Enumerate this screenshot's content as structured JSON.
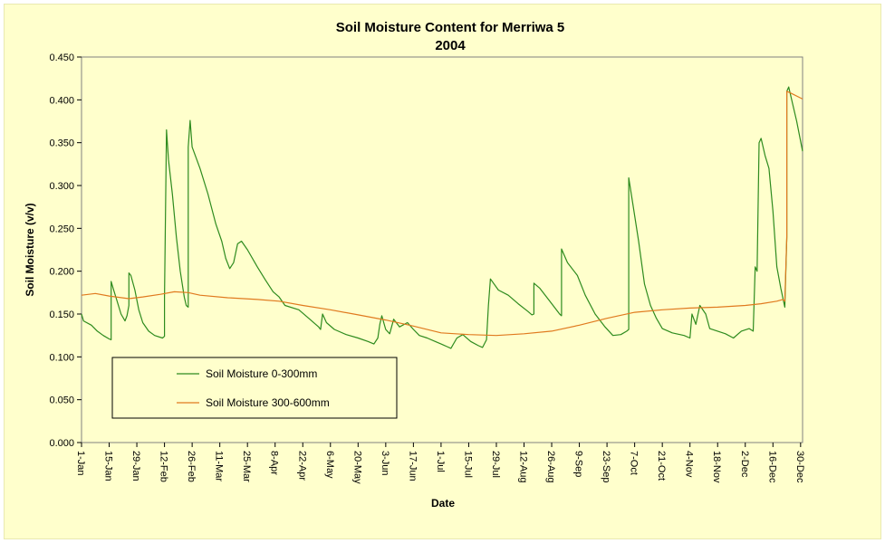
{
  "chart_data": {
    "type": "line",
    "title": "Soil Moisture Content for Merriwa 5",
    "subtitle": "2004",
    "xlabel": "Date",
    "ylabel": "Soil Moisture (v/v)",
    "ylim": [
      0,
      0.45
    ],
    "yticks": [
      "0.000",
      "0.050",
      "0.100",
      "0.150",
      "0.200",
      "0.250",
      "0.300",
      "0.350",
      "0.400",
      "0.450"
    ],
    "xlim": [
      "2004-01-01",
      "2004-12-31"
    ],
    "xticks": [
      {
        "date": "2004-01-01",
        "label": "1-Jan"
      },
      {
        "date": "2004-01-15",
        "label": "15-Jan"
      },
      {
        "date": "2004-01-29",
        "label": "29-Jan"
      },
      {
        "date": "2004-02-12",
        "label": "12-Feb"
      },
      {
        "date": "2004-02-26",
        "label": "26-Feb"
      },
      {
        "date": "2004-03-11",
        "label": "11-Mar"
      },
      {
        "date": "2004-03-25",
        "label": "25-Mar"
      },
      {
        "date": "2004-04-08",
        "label": "8-Apr"
      },
      {
        "date": "2004-04-22",
        "label": "22-Apr"
      },
      {
        "date": "2004-05-06",
        "label": "6-May"
      },
      {
        "date": "2004-05-20",
        "label": "20-May"
      },
      {
        "date": "2004-06-03",
        "label": "3-Jun"
      },
      {
        "date": "2004-06-17",
        "label": "17-Jun"
      },
      {
        "date": "2004-07-01",
        "label": "1-Jul"
      },
      {
        "date": "2004-07-15",
        "label": "15-Jul"
      },
      {
        "date": "2004-07-29",
        "label": "29-Jul"
      },
      {
        "date": "2004-08-12",
        "label": "12-Aug"
      },
      {
        "date": "2004-08-26",
        "label": "26-Aug"
      },
      {
        "date": "2004-09-09",
        "label": "9-Sep"
      },
      {
        "date": "2004-09-23",
        "label": "23-Sep"
      },
      {
        "date": "2004-10-07",
        "label": "7-Oct"
      },
      {
        "date": "2004-10-21",
        "label": "21-Oct"
      },
      {
        "date": "2004-11-04",
        "label": "4-Nov"
      },
      {
        "date": "2004-11-18",
        "label": "18-Nov"
      },
      {
        "date": "2004-12-02",
        "label": "2-Dec"
      },
      {
        "date": "2004-12-16",
        "label": "16-Dec"
      },
      {
        "date": "2004-12-30",
        "label": "30-Dec"
      }
    ],
    "grid": false,
    "legend_position": "lower-left",
    "series": [
      {
        "name": "Soil Moisture 0-300mm",
        "color": "#2E8B1E",
        "points": [
          [
            "2004-01-01",
            0.15
          ],
          [
            "2004-01-02",
            0.142
          ],
          [
            "2004-01-06",
            0.137
          ],
          [
            "2004-01-09",
            0.13
          ],
          [
            "2004-01-12",
            0.125
          ],
          [
            "2004-01-15",
            0.121
          ],
          [
            "2004-01-16",
            0.12
          ],
          [
            "2004-01-16",
            0.188
          ],
          [
            "2004-01-17",
            0.18
          ],
          [
            "2004-01-19",
            0.165
          ],
          [
            "2004-01-21",
            0.15
          ],
          [
            "2004-01-23",
            0.142
          ],
          [
            "2004-01-24",
            0.148
          ],
          [
            "2004-01-25",
            0.16
          ],
          [
            "2004-01-25",
            0.198
          ],
          [
            "2004-01-26",
            0.195
          ],
          [
            "2004-01-28",
            0.178
          ],
          [
            "2004-01-30",
            0.155
          ],
          [
            "2004-02-01",
            0.14
          ],
          [
            "2004-02-04",
            0.13
          ],
          [
            "2004-02-07",
            0.125
          ],
          [
            "2004-02-11",
            0.122
          ],
          [
            "2004-02-12",
            0.124
          ],
          [
            "2004-02-12",
            0.17
          ],
          [
            "2004-02-13",
            0.365
          ],
          [
            "2004-02-14",
            0.33
          ],
          [
            "2004-02-16",
            0.29
          ],
          [
            "2004-02-18",
            0.24
          ],
          [
            "2004-02-20",
            0.2
          ],
          [
            "2004-02-22",
            0.17
          ],
          [
            "2004-02-23",
            0.16
          ],
          [
            "2004-02-24",
            0.158
          ],
          [
            "2004-02-24",
            0.345
          ],
          [
            "2004-02-25",
            0.376
          ],
          [
            "2004-02-26",
            0.345
          ],
          [
            "2004-03-01",
            0.32
          ],
          [
            "2004-03-05",
            0.29
          ],
          [
            "2004-03-09",
            0.255
          ],
          [
            "2004-03-12",
            0.235
          ],
          [
            "2004-03-14",
            0.215
          ],
          [
            "2004-03-16",
            0.203
          ],
          [
            "2004-03-18",
            0.21
          ],
          [
            "2004-03-20",
            0.232
          ],
          [
            "2004-03-22",
            0.235
          ],
          [
            "2004-03-25",
            0.225
          ],
          [
            "2004-03-30",
            0.205
          ],
          [
            "2004-04-03",
            0.19
          ],
          [
            "2004-04-07",
            0.176
          ],
          [
            "2004-04-10",
            0.17
          ],
          [
            "2004-04-13",
            0.16
          ],
          [
            "2004-04-20",
            0.155
          ],
          [
            "2004-04-25",
            0.145
          ],
          [
            "2004-04-30",
            0.135
          ],
          [
            "2004-05-01",
            0.132
          ],
          [
            "2004-05-02",
            0.15
          ],
          [
            "2004-05-04",
            0.14
          ],
          [
            "2004-05-08",
            0.132
          ],
          [
            "2004-05-14",
            0.126
          ],
          [
            "2004-05-20",
            0.122
          ],
          [
            "2004-05-25",
            0.118
          ],
          [
            "2004-05-28",
            0.115
          ],
          [
            "2004-05-30",
            0.122
          ],
          [
            "2004-05-31",
            0.138
          ],
          [
            "2004-06-01",
            0.148
          ],
          [
            "2004-06-03",
            0.132
          ],
          [
            "2004-06-05",
            0.127
          ],
          [
            "2004-06-07",
            0.144
          ],
          [
            "2004-06-10",
            0.135
          ],
          [
            "2004-06-14",
            0.14
          ],
          [
            "2004-06-17",
            0.132
          ],
          [
            "2004-06-20",
            0.125
          ],
          [
            "2004-06-24",
            0.122
          ],
          [
            "2004-06-28",
            0.118
          ],
          [
            "2004-07-01",
            0.115
          ],
          [
            "2004-07-04",
            0.112
          ],
          [
            "2004-07-06",
            0.11
          ],
          [
            "2004-07-09",
            0.122
          ],
          [
            "2004-07-12",
            0.126
          ],
          [
            "2004-07-16",
            0.118
          ],
          [
            "2004-07-20",
            0.113
          ],
          [
            "2004-07-22",
            0.111
          ],
          [
            "2004-07-24",
            0.12
          ],
          [
            "2004-07-25",
            0.16
          ],
          [
            "2004-07-26",
            0.191
          ],
          [
            "2004-07-30",
            0.178
          ],
          [
            "2004-08-04",
            0.172
          ],
          [
            "2004-08-09",
            0.162
          ],
          [
            "2004-08-14",
            0.153
          ],
          [
            "2004-08-16",
            0.149
          ],
          [
            "2004-08-17",
            0.15
          ],
          [
            "2004-08-17",
            0.186
          ],
          [
            "2004-08-20",
            0.18
          ],
          [
            "2004-08-25",
            0.165
          ],
          [
            "2004-08-30",
            0.15
          ],
          [
            "2004-08-31",
            0.148
          ],
          [
            "2004-08-31",
            0.226
          ],
          [
            "2004-09-03",
            0.21
          ],
          [
            "2004-09-08",
            0.195
          ],
          [
            "2004-09-12",
            0.172
          ],
          [
            "2004-09-17",
            0.15
          ],
          [
            "2004-09-22",
            0.135
          ],
          [
            "2004-09-26",
            0.125
          ],
          [
            "2004-09-30",
            0.126
          ],
          [
            "2004-10-03",
            0.13
          ],
          [
            "2004-10-04",
            0.132
          ],
          [
            "2004-10-04",
            0.309
          ],
          [
            "2004-10-06",
            0.28
          ],
          [
            "2004-10-09",
            0.235
          ],
          [
            "2004-10-12",
            0.185
          ],
          [
            "2004-10-15",
            0.16
          ],
          [
            "2004-10-18",
            0.145
          ],
          [
            "2004-10-21",
            0.133
          ],
          [
            "2004-10-26",
            0.128
          ],
          [
            "2004-11-01",
            0.125
          ],
          [
            "2004-11-04",
            0.122
          ],
          [
            "2004-11-05",
            0.15
          ],
          [
            "2004-11-07",
            0.138
          ],
          [
            "2004-11-09",
            0.16
          ],
          [
            "2004-11-12",
            0.15
          ],
          [
            "2004-11-14",
            0.133
          ],
          [
            "2004-11-18",
            0.13
          ],
          [
            "2004-11-22",
            0.127
          ],
          [
            "2004-11-26",
            0.122
          ],
          [
            "2004-11-30",
            0.13
          ],
          [
            "2004-12-04",
            0.133
          ],
          [
            "2004-12-06",
            0.13
          ],
          [
            "2004-12-07",
            0.205
          ],
          [
            "2004-12-08",
            0.2
          ],
          [
            "2004-12-09",
            0.35
          ],
          [
            "2004-12-10",
            0.355
          ],
          [
            "2004-12-12",
            0.335
          ],
          [
            "2004-12-14",
            0.32
          ],
          [
            "2004-12-16",
            0.27
          ],
          [
            "2004-12-18",
            0.205
          ],
          [
            "2004-12-20",
            0.18
          ],
          [
            "2004-12-22",
            0.158
          ],
          [
            "2004-12-23",
            0.24
          ],
          [
            "2004-12-23",
            0.41
          ],
          [
            "2004-12-24",
            0.415
          ],
          [
            "2004-12-26",
            0.395
          ],
          [
            "2004-12-28",
            0.375
          ],
          [
            "2004-12-31",
            0.34
          ]
        ]
      },
      {
        "name": "Soil Moisture 300-600mm",
        "color": "#E07A1F",
        "points": [
          [
            "2004-01-01",
            0.172
          ],
          [
            "2004-01-08",
            0.174
          ],
          [
            "2004-01-15",
            0.171
          ],
          [
            "2004-01-25",
            0.168
          ],
          [
            "2004-02-01",
            0.17
          ],
          [
            "2004-02-10",
            0.173
          ],
          [
            "2004-02-17",
            0.176
          ],
          [
            "2004-02-24",
            0.175
          ],
          [
            "2004-03-01",
            0.172
          ],
          [
            "2004-03-15",
            0.169
          ],
          [
            "2004-03-30",
            0.167
          ],
          [
            "2004-04-10",
            0.165
          ],
          [
            "2004-04-22",
            0.16
          ],
          [
            "2004-05-06",
            0.155
          ],
          [
            "2004-05-20",
            0.149
          ],
          [
            "2004-06-03",
            0.143
          ],
          [
            "2004-06-17",
            0.136
          ],
          [
            "2004-07-01",
            0.128
          ],
          [
            "2004-07-15",
            0.126
          ],
          [
            "2004-07-29",
            0.125
          ],
          [
            "2004-08-12",
            0.127
          ],
          [
            "2004-08-26",
            0.13
          ],
          [
            "2004-09-09",
            0.137
          ],
          [
            "2004-09-23",
            0.145
          ],
          [
            "2004-10-07",
            0.152
          ],
          [
            "2004-10-21",
            0.155
          ],
          [
            "2004-11-04",
            0.157
          ],
          [
            "2004-11-18",
            0.158
          ],
          [
            "2004-12-02",
            0.16
          ],
          [
            "2004-12-10",
            0.162
          ],
          [
            "2004-12-18",
            0.165
          ],
          [
            "2004-12-21",
            0.167
          ],
          [
            "2004-12-22",
            0.165
          ],
          [
            "2004-12-23",
            0.24
          ],
          [
            "2004-12-23",
            0.41
          ],
          [
            "2004-12-25",
            0.408
          ],
          [
            "2004-12-31",
            0.401
          ]
        ]
      }
    ]
  }
}
